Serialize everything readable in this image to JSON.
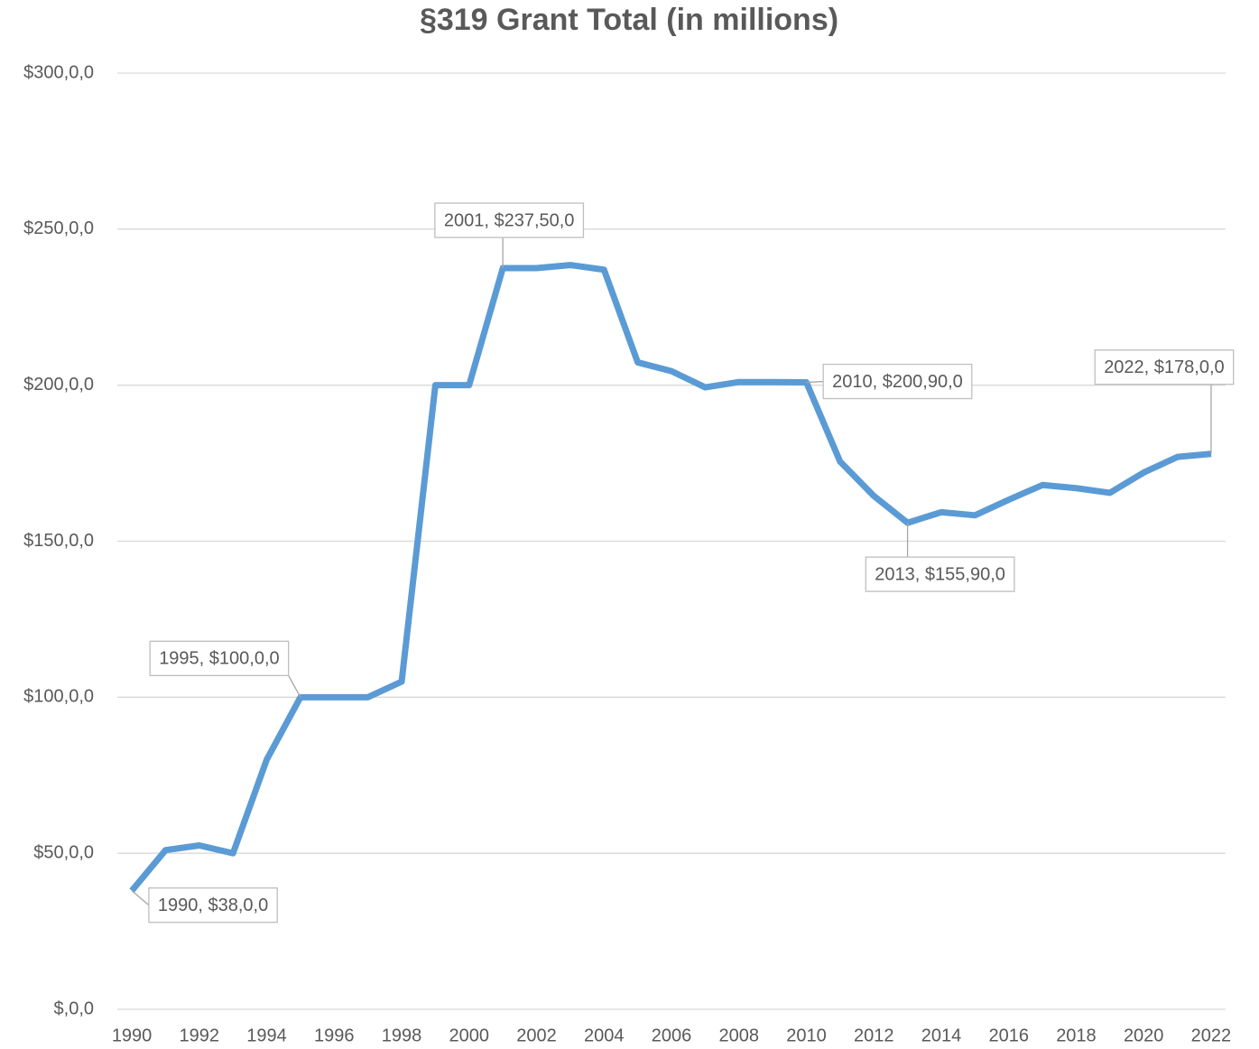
{
  "chart_data": {
    "type": "line",
    "title": "§319 Grant Total (in millions)",
    "x": [
      1990,
      1991,
      1992,
      1993,
      1994,
      1995,
      1996,
      1997,
      1998,
      1999,
      2000,
      2001,
      2002,
      2003,
      2004,
      2005,
      2006,
      2007,
      2008,
      2009,
      2010,
      2011,
      2012,
      2013,
      2014,
      2015,
      2016,
      2017,
      2018,
      2019,
      2020,
      2021,
      2022
    ],
    "series": [
      {
        "name": "§319 Grant Total",
        "color": "#5b9bd5",
        "values": [
          38,
          51,
          52.5,
          50,
          80,
          100,
          100,
          100,
          105,
          200,
          200,
          237.5,
          237.5,
          238.5,
          237,
          207.3,
          204.5,
          199.3,
          201,
          201,
          200.9,
          175.5,
          164.5,
          155.9,
          159.3,
          158.3,
          163.3,
          168,
          167,
          165.5,
          172,
          177,
          178
        ],
        "value_labels": [
          "1990, $38,0,0",
          null,
          null,
          null,
          null,
          "1995, $100,0,0",
          null,
          null,
          null,
          null,
          null,
          "2001, $237,50,0",
          null,
          null,
          null,
          null,
          null,
          null,
          null,
          null,
          "2010, $200,90,0",
          null,
          null,
          "2013, $155,90,0",
          null,
          null,
          null,
          null,
          null,
          null,
          null,
          null,
          "2022, $178,0,0"
        ]
      }
    ],
    "xlim": [
      1989.57,
      2022.43
    ],
    "xticks": [
      1990,
      1992,
      1994,
      1996,
      1998,
      2000,
      2002,
      2004,
      2006,
      2008,
      2010,
      2012,
      2014,
      2016,
      2018,
      2020,
      2022
    ],
    "ylim": [
      0,
      300
    ],
    "yticks": [
      {
        "value": 0,
        "label": "$,0,0"
      },
      {
        "value": 50,
        "label": "$50,0,0"
      },
      {
        "value": 100,
        "label": "$100,0,0"
      },
      {
        "value": 150,
        "label": "$150,0,0"
      },
      {
        "value": 200,
        "label": "$200,0,0"
      },
      {
        "value": 250,
        "label": "$250,0,0"
      },
      {
        "value": 300,
        "label": "$300,0,0"
      }
    ],
    "grid": true
  }
}
